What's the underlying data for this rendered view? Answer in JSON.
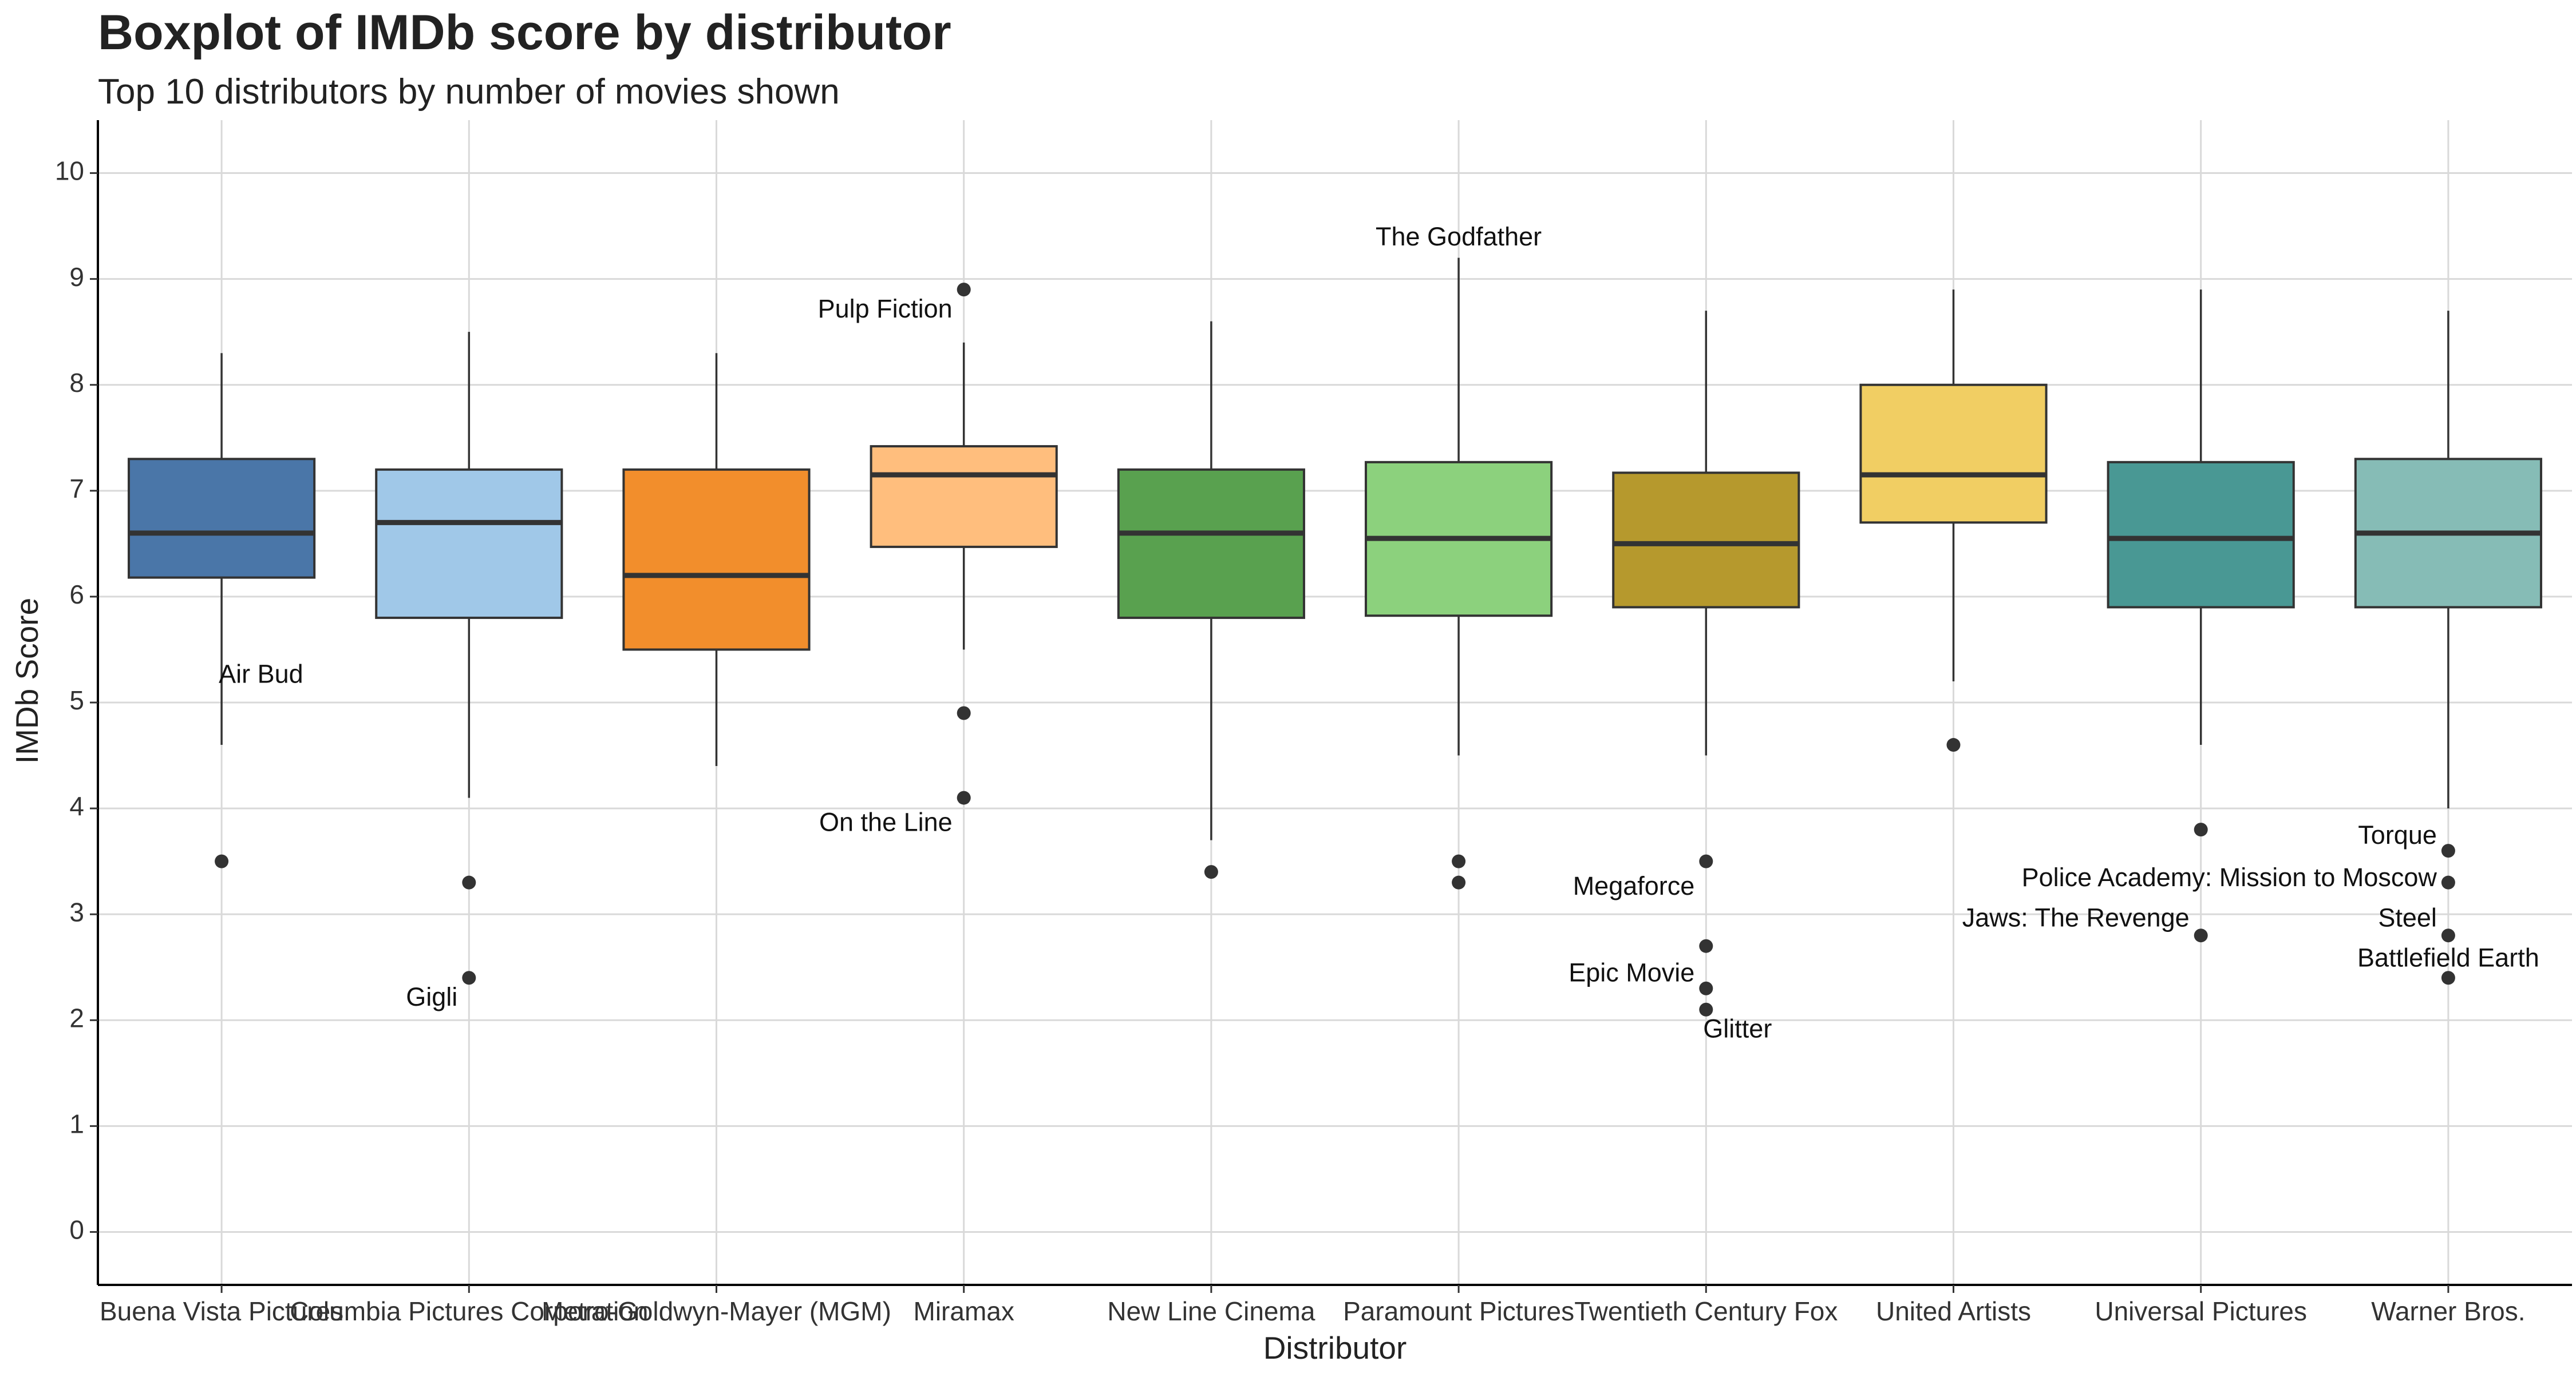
{
  "chart_data": {
    "type": "boxplot",
    "title": "Boxplot of IMDb score by distributor",
    "subtitle": "Top 10 distributors by number of movies shown",
    "xlabel": "Distributor",
    "ylabel": "IMDb Score",
    "ylim": [
      -0.5,
      10.5
    ],
    "yticks": [
      0,
      1,
      2,
      3,
      4,
      5,
      6,
      7,
      8,
      9,
      10
    ],
    "grid": true,
    "legend": "none",
    "categories": [
      {
        "name": "Buena Vista Pictures",
        "color": "#4a76a8",
        "q1": 6.18,
        "median": 6.6,
        "q3": 7.3,
        "whisker_low": 4.6,
        "whisker_high": 8.3,
        "outliers": [
          3.5
        ]
      },
      {
        "name": "Columbia Pictures Corporation",
        "color": "#a0c8e8",
        "q1": 5.8,
        "median": 6.7,
        "q3": 7.2,
        "whisker_low": 4.1,
        "whisker_high": 8.5,
        "outliers": [
          3.3,
          2.4
        ]
      },
      {
        "name": "Metro-Goldwyn-Mayer (MGM)",
        "color": "#f28e2c",
        "q1": 5.5,
        "median": 6.2,
        "q3": 7.2,
        "whisker_low": 4.4,
        "whisker_high": 8.3,
        "outliers": []
      },
      {
        "name": "Miramax",
        "color": "#ffbe7d",
        "q1": 6.47,
        "median": 7.15,
        "q3": 7.42,
        "whisker_low": 5.5,
        "whisker_high": 8.4,
        "outliers": [
          8.9,
          4.9,
          4.1
        ]
      },
      {
        "name": "New Line Cinema",
        "color": "#59a14f",
        "q1": 5.8,
        "median": 6.6,
        "q3": 7.2,
        "whisker_low": 3.7,
        "whisker_high": 8.6,
        "outliers": [
          3.4
        ]
      },
      {
        "name": "Paramount Pictures",
        "color": "#8cd17d",
        "q1": 5.82,
        "median": 6.55,
        "q3": 7.27,
        "whisker_low": 4.5,
        "whisker_high": 9.2,
        "outliers": [
          3.5,
          3.3
        ]
      },
      {
        "name": "Twentieth Century Fox",
        "color": "#b6992d",
        "q1": 5.9,
        "median": 6.5,
        "q3": 7.17,
        "whisker_low": 4.5,
        "whisker_high": 8.7,
        "outliers": [
          3.5,
          2.7,
          2.3,
          2.1
        ]
      },
      {
        "name": "United Artists",
        "color": "#f1ce63",
        "q1": 6.7,
        "median": 7.15,
        "q3": 8.0,
        "whisker_low": 5.2,
        "whisker_high": 8.9,
        "outliers": [
          4.6
        ]
      },
      {
        "name": "Universal Pictures",
        "color": "#499894",
        "q1": 5.9,
        "median": 6.55,
        "q3": 7.27,
        "whisker_low": 4.6,
        "whisker_high": 8.9,
        "outliers": [
          3.8,
          2.8
        ]
      },
      {
        "name": "Warner Bros.",
        "color": "#86bcb6",
        "q1": 5.9,
        "median": 6.6,
        "q3": 7.3,
        "whisker_low": 4.0,
        "whisker_high": 8.7,
        "outliers": [
          3.6,
          3.3,
          2.8,
          2.4
        ]
      }
    ],
    "annotations": [
      {
        "text": "Air Bud",
        "category": 0,
        "y": 5.25,
        "anchor": "start"
      },
      {
        "text": "Gigli",
        "category": 1,
        "y": 2.2,
        "anchor": "end"
      },
      {
        "text": "Pulp Fiction",
        "category": 3,
        "y": 8.7,
        "anchor": "end"
      },
      {
        "text": "On the Line",
        "category": 3,
        "y": 3.85,
        "anchor": "end"
      },
      {
        "text": "The Godfather",
        "category": 5,
        "y": 9.38,
        "anchor": "middle"
      },
      {
        "text": "Megaforce",
        "category": 6,
        "y": 3.25,
        "anchor": "end"
      },
      {
        "text": "Epic Movie",
        "category": 6,
        "y": 2.43,
        "anchor": "end"
      },
      {
        "text": "Glitter",
        "category": 6,
        "y": 1.9,
        "anchor": "start"
      },
      {
        "text": "Jaws: The Revenge",
        "category": 8,
        "y": 2.95,
        "anchor": "end"
      },
      {
        "text": "Torque",
        "category": 9,
        "y": 3.73,
        "anchor": "end"
      },
      {
        "text": "Police Academy: Mission to Moscow",
        "category": 9,
        "y": 3.33,
        "anchor": "end"
      },
      {
        "text": "Steel",
        "category": 9,
        "y": 2.95,
        "anchor": "end"
      },
      {
        "text": "Battlefield Earth",
        "category": 9,
        "y": 2.57,
        "anchor": "middle"
      }
    ]
  }
}
